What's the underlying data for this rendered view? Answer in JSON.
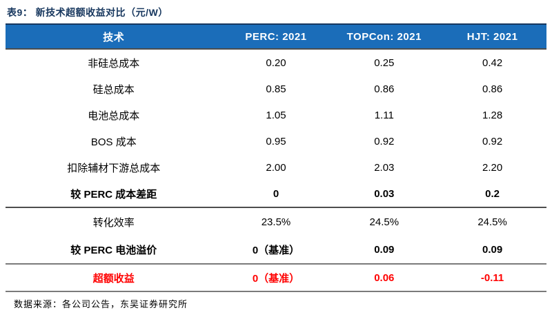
{
  "title": "表9：  新技术超额收益对比（元/W）",
  "table": {
    "header": {
      "col0": "技术",
      "col1": "PERC:  2021",
      "col2": "TOPCon:  2021",
      "col3": "HJT:  2021"
    },
    "rows": [
      {
        "label": "非硅总成本",
        "perc": "0.20",
        "topcon": "0.25",
        "hjt": "0.42"
      },
      {
        "label": "硅总成本",
        "perc": "0.85",
        "topcon": "0.86",
        "hjt": "0.86"
      },
      {
        "label": "电池总成本",
        "perc": "1.05",
        "topcon": "1.11",
        "hjt": "1.28"
      },
      {
        "label": "BOS 成本",
        "perc": "0.95",
        "topcon": "0.92",
        "hjt": "0.92"
      },
      {
        "label": "扣除辅材下游总成本",
        "perc": "2.00",
        "topcon": "2.03",
        "hjt": "2.20"
      },
      {
        "label": "较 PERC 成本差距",
        "perc": "0",
        "topcon": "0.03",
        "hjt": "0.2"
      },
      {
        "label": "转化效率",
        "perc": "23.5%",
        "topcon": "24.5%",
        "hjt": "24.5%"
      },
      {
        "label": "较 PERC 电池溢价",
        "perc": "0（基准）",
        "topcon": "0.09",
        "hjt": "0.09"
      },
      {
        "label": "超额收益",
        "perc": "0（基准）",
        "topcon": "0.06",
        "hjt": "-0.11"
      }
    ]
  },
  "footer": {
    "source": "数据来源：各公司公告，东吴证券研究所"
  },
  "colors": {
    "header_bg": "#1B6DB9",
    "title_navy": "#17375E",
    "highlight_red": "#FF0000"
  }
}
